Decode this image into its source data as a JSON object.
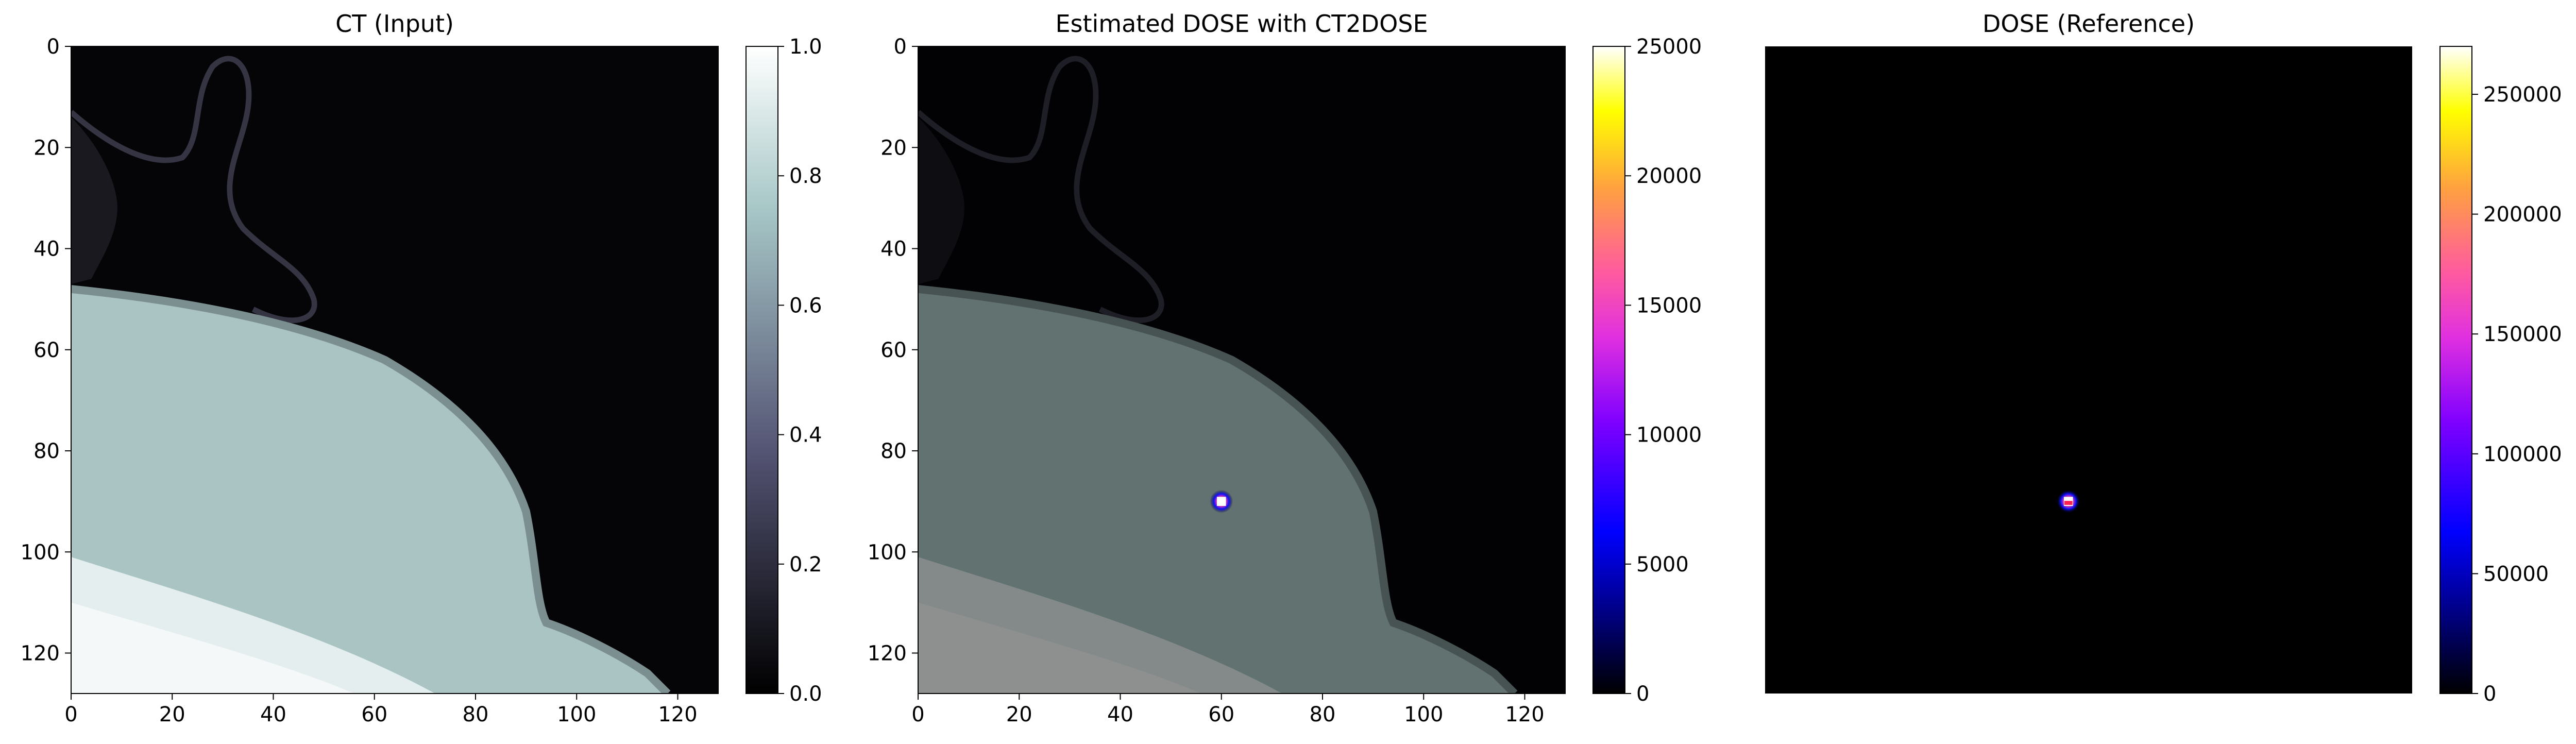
{
  "chart_data": [
    {
      "type": "heatmap",
      "title": "CT (Input)",
      "xlabel": "",
      "ylabel": "",
      "xlim": [
        0,
        128
      ],
      "ylim": [
        128,
        0
      ],
      "x_ticks": [
        "0",
        "20",
        "40",
        "60",
        "80",
        "100",
        "120"
      ],
      "y_ticks": [
        "0",
        "20",
        "40",
        "60",
        "80",
        "100",
        "120"
      ],
      "show_axes": true,
      "colormap": "bone",
      "colorbar": {
        "min": 0.0,
        "max": 1.0,
        "ticks": [
          "0.0",
          "0.2",
          "0.4",
          "0.6",
          "0.8",
          "1.0"
        ]
      }
    },
    {
      "type": "heatmap",
      "title": "Estimated DOSE with CT2DOSE",
      "xlabel": "",
      "ylabel": "",
      "xlim": [
        0,
        128
      ],
      "ylim": [
        128,
        0
      ],
      "x_ticks": [
        "0",
        "20",
        "40",
        "60",
        "80",
        "100",
        "120"
      ],
      "y_ticks": [
        "0",
        "20",
        "40",
        "60",
        "80",
        "100",
        "120"
      ],
      "show_axes": true,
      "colormap": "gnuplot2",
      "hotspot": {
        "x": 60,
        "y": 90
      },
      "colorbar": {
        "min": 0,
        "max": 25000,
        "ticks": [
          "0",
          "5000",
          "10000",
          "15000",
          "20000",
          "25000"
        ]
      }
    },
    {
      "type": "heatmap",
      "title": "DOSE (Reference)",
      "xlabel": "",
      "ylabel": "",
      "show_axes": false,
      "colormap": "gnuplot2",
      "hotspot": {
        "x": 60,
        "y": 90
      },
      "colorbar": {
        "min": 0,
        "max": 270000,
        "ticks": [
          "0",
          "50000",
          "100000",
          "150000",
          "200000",
          "250000"
        ]
      }
    }
  ]
}
